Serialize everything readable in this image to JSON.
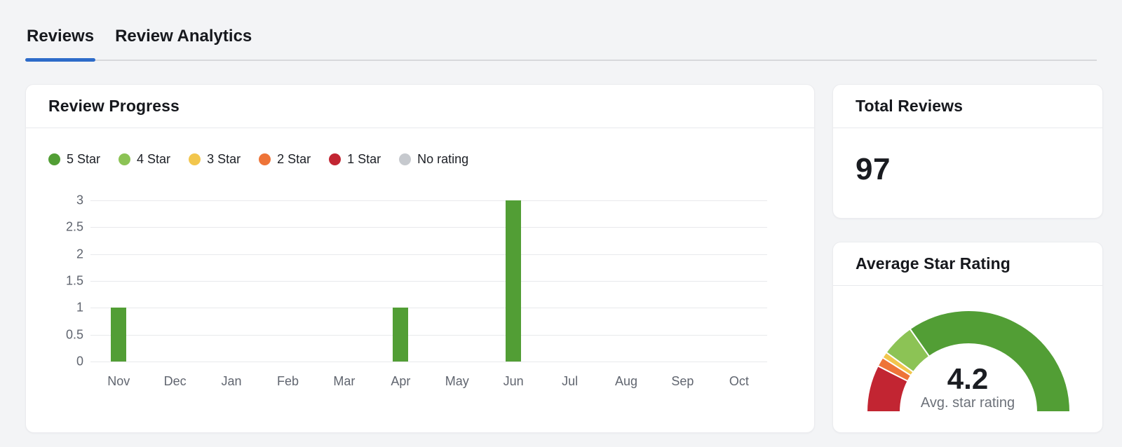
{
  "tabs": [
    {
      "label": "Reviews",
      "active": true
    },
    {
      "label": "Review Analytics",
      "active": false
    }
  ],
  "total_reviews": {
    "title": "Total Reviews",
    "value": "97"
  },
  "colors": {
    "accent_blue": "#2d6bc9",
    "five_star": "#529e35",
    "four_star": "#8cc355",
    "three_star": "#f2c64d",
    "two_star": "#ee7438",
    "one_star": "#c22532",
    "no_rating": "#c6c9ce"
  },
  "chart_data": [
    {
      "type": "bar",
      "title": "Review Progress",
      "categories": [
        "Nov",
        "Dec",
        "Jan",
        "Feb",
        "Mar",
        "Apr",
        "May",
        "Jun",
        "Jul",
        "Aug",
        "Sep",
        "Oct"
      ],
      "series": [
        {
          "name": "5 Star",
          "color": "#529e35",
          "values": [
            1,
            0,
            0,
            0,
            0,
            1,
            0,
            3,
            0,
            0,
            0,
            0
          ]
        },
        {
          "name": "4 Star",
          "color": "#8cc355",
          "values": [
            0,
            0,
            0,
            0,
            0,
            0,
            0,
            0,
            0,
            0,
            0,
            0
          ]
        },
        {
          "name": "3 Star",
          "color": "#f2c64d",
          "values": [
            0,
            0,
            0,
            0,
            0,
            0,
            0,
            0,
            0,
            0,
            0,
            0
          ]
        },
        {
          "name": "2 Star",
          "color": "#ee7438",
          "values": [
            0,
            0,
            0,
            0,
            0,
            0,
            0,
            0,
            0,
            0,
            0,
            0
          ]
        },
        {
          "name": "1 Star",
          "color": "#c22532",
          "values": [
            0,
            0,
            0,
            0,
            0,
            0,
            0,
            0,
            0,
            0,
            0,
            0
          ]
        },
        {
          "name": "No rating",
          "color": "#c6c9ce",
          "values": [
            0,
            0,
            0,
            0,
            0,
            0,
            0,
            0,
            0,
            0,
            0,
            0
          ]
        }
      ],
      "xlabel": "",
      "ylabel": "",
      "ylim": [
        0,
        3
      ],
      "yticks": [
        0,
        0.5,
        1,
        1.5,
        2,
        2.5,
        3
      ],
      "grid": true,
      "legend_position": "top"
    },
    {
      "type": "gauge",
      "title": "Average Star Rating",
      "value": 4.2,
      "value_label": "4.2",
      "caption": "Avg. star rating",
      "range": [
        0,
        1
      ],
      "segments": [
        {
          "label": "1 Star",
          "color": "#c22532",
          "fraction": 0.15
        },
        {
          "label": "2 Star",
          "color": "#ee7438",
          "fraction": 0.03
        },
        {
          "label": "3 Star",
          "color": "#f2c64d",
          "fraction": 0.02
        },
        {
          "label": "4 Star",
          "color": "#8cc355",
          "fraction": 0.105
        },
        {
          "label": "5 Star",
          "color": "#529e35",
          "fraction": 0.695
        }
      ]
    }
  ]
}
